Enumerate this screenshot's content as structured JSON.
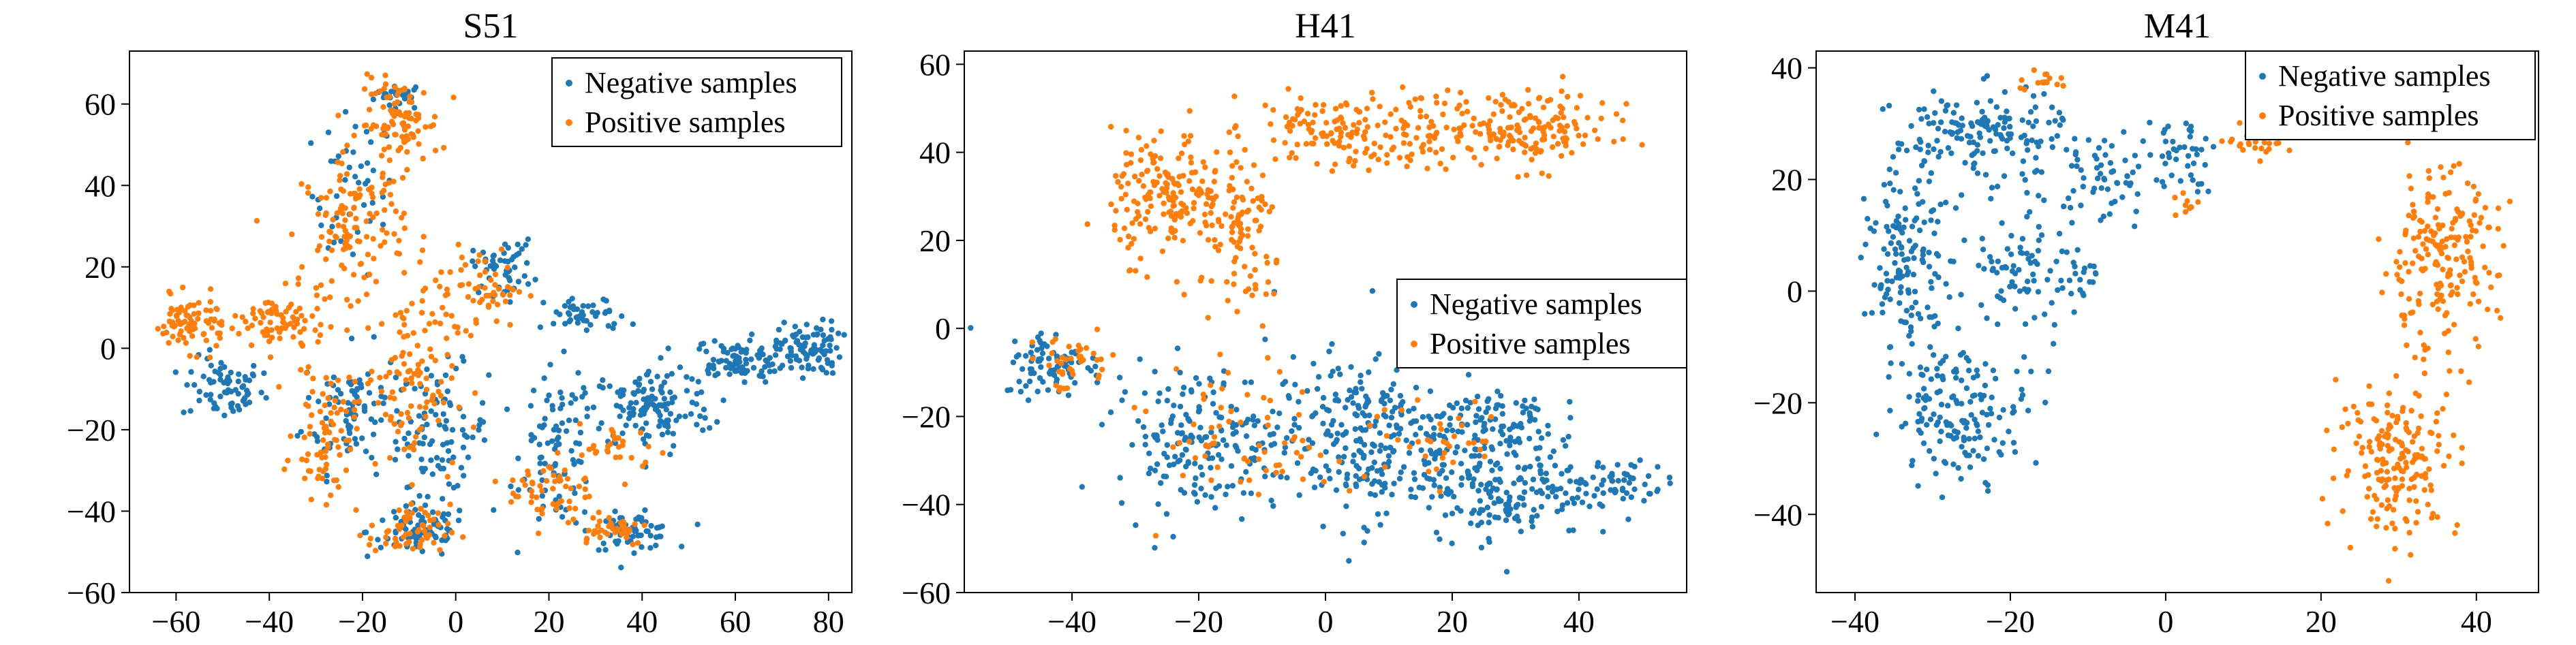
{
  "colors": {
    "negative": "#1f77b4",
    "positive": "#ff7f0e",
    "axes": "#000000",
    "background": "#ffffff"
  },
  "chart_data": [
    {
      "type": "scatter",
      "title": "S51",
      "xlim": [
        -70,
        85
      ],
      "ylim": [
        -60,
        73
      ],
      "xticks": [
        -60,
        -40,
        -20,
        0,
        20,
        40,
        60,
        80
      ],
      "yticks": [
        -60,
        -40,
        -20,
        0,
        20,
        40,
        60
      ],
      "xtick_labels": [
        "−60",
        "−40",
        "−20",
        "0",
        "20",
        "40",
        "60",
        "80"
      ],
      "ytick_labels": [
        "−60",
        "−40",
        "−20",
        "0",
        "20",
        "40",
        "60"
      ],
      "legend": {
        "position": "top-right",
        "entries": [
          "Negative samples",
          "Positive samples"
        ]
      },
      "series": [
        {
          "name": "Negative samples",
          "color": "#1f77b4",
          "clusters": [
            {
              "cx": -12,
              "cy": 62,
              "rx": 5,
              "ry": 3,
              "n": 25
            },
            {
              "cx": -22,
              "cy": 38,
              "rx": 8,
              "ry": 18,
              "n": 45
            },
            {
              "cx": -50,
              "cy": -10,
              "rx": 8,
              "ry": 7,
              "n": 70
            },
            {
              "cx": -22,
              "cy": -15,
              "rx": 10,
              "ry": 14,
              "n": 90
            },
            {
              "cx": -3,
              "cy": -20,
              "rx": 9,
              "ry": 14,
              "n": 90
            },
            {
              "cx": -8,
              "cy": -45,
              "rx": 10,
              "ry": 6,
              "n": 80
            },
            {
              "cx": 22,
              "cy": -25,
              "rx": 7,
              "ry": 18,
              "n": 90
            },
            {
              "cx": 38,
              "cy": -45,
              "rx": 8,
              "ry": 4,
              "n": 60
            },
            {
              "cx": 42,
              "cy": -15,
              "rx": 12,
              "ry": 9,
              "n": 130
            },
            {
              "cx": 60,
              "cy": -3,
              "rx": 10,
              "ry": 5,
              "n": 100
            },
            {
              "cx": 76,
              "cy": 0,
              "rx": 6,
              "ry": 6,
              "n": 90
            },
            {
              "cx": 28,
              "cy": 8,
              "rx": 8,
              "ry": 4,
              "n": 50
            },
            {
              "cx": 10,
              "cy": 20,
              "rx": 6,
              "ry": 6,
              "n": 50
            }
          ]
        },
        {
          "name": "Positive samples",
          "color": "#ff7f0e",
          "clusters": [
            {
              "cx": -12,
              "cy": 55,
              "rx": 8,
              "ry": 10,
              "n": 100
            },
            {
              "cx": -22,
              "cy": 30,
              "rx": 10,
              "ry": 15,
              "n": 120
            },
            {
              "cx": -57,
              "cy": 6,
              "rx": 7,
              "ry": 6,
              "n": 80
            },
            {
              "cx": -38,
              "cy": 6,
              "rx": 9,
              "ry": 7,
              "n": 80
            },
            {
              "cx": -28,
              "cy": -20,
              "rx": 6,
              "ry": 15,
              "n": 80
            },
            {
              "cx": -10,
              "cy": -8,
              "rx": 9,
              "ry": 20,
              "n": 110
            },
            {
              "cx": -10,
              "cy": -45,
              "rx": 8,
              "ry": 6,
              "n": 60
            },
            {
              "cx": 5,
              "cy": 15,
              "rx": 9,
              "ry": 9,
              "n": 60
            },
            {
              "cx": 20,
              "cy": -35,
              "rx": 8,
              "ry": 8,
              "n": 50
            },
            {
              "cx": 33,
              "cy": -44,
              "rx": 8,
              "ry": 4,
              "n": 40
            },
            {
              "cx": 35,
              "cy": -25,
              "rx": 8,
              "ry": 6,
              "n": 30
            }
          ]
        }
      ]
    },
    {
      "type": "scatter",
      "title": "H41",
      "xlim": [
        -57,
        57
      ],
      "ylim": [
        -60,
        63
      ],
      "xticks": [
        -40,
        -20,
        0,
        20,
        40
      ],
      "yticks": [
        -60,
        -40,
        -20,
        0,
        20,
        40,
        60
      ],
      "xtick_labels": [
        "−40",
        "−20",
        "0",
        "20",
        "40"
      ],
      "ytick_labels": [
        "−60",
        "−40",
        "−20",
        "0",
        "20",
        "40",
        "60"
      ],
      "legend": {
        "position": "center-right",
        "entries": [
          "Negative samples",
          "Positive samples"
        ]
      },
      "series": [
        {
          "name": "Negative samples",
          "color": "#1f77b4",
          "clusters": [
            {
              "cx": -43,
              "cy": -8,
              "rx": 7,
              "ry": 7,
              "n": 80
            },
            {
              "cx": -20,
              "cy": -25,
              "rx": 12,
              "ry": 15,
              "n": 180
            },
            {
              "cx": 5,
              "cy": -25,
              "rx": 12,
              "ry": 17,
              "n": 250
            },
            {
              "cx": 28,
              "cy": -35,
              "rx": 12,
              "ry": 12,
              "n": 200
            },
            {
              "cx": 45,
              "cy": -35,
              "rx": 8,
              "ry": 5,
              "n": 60
            },
            {
              "cx": 25,
              "cy": -20,
              "rx": 10,
              "ry": 7,
              "n": 80
            }
          ]
        },
        {
          "name": "Positive samples",
          "color": "#ff7f0e",
          "clusters": [
            {
              "cx": -25,
              "cy": 30,
              "rx": 8,
              "ry": 13,
              "n": 170
            },
            {
              "cx": -13,
              "cy": 20,
              "rx": 6,
              "ry": 18,
              "n": 100
            },
            {
              "cx": 0,
              "cy": 45,
              "rx": 10,
              "ry": 8,
              "n": 100
            },
            {
              "cx": 15,
              "cy": 45,
              "rx": 10,
              "ry": 7,
              "n": 80
            },
            {
              "cx": 32,
              "cy": 45,
              "rx": 12,
              "ry": 8,
              "n": 150
            },
            {
              "cx": -40,
              "cy": -8,
              "rx": 7,
              "ry": 6,
              "n": 40
            },
            {
              "cx": -12,
              "cy": -25,
              "rx": 12,
              "ry": 15,
              "n": 60
            },
            {
              "cx": 15,
              "cy": -25,
              "rx": 15,
              "ry": 12,
              "n": 40
            }
          ]
        }
      ]
    },
    {
      "type": "scatter",
      "title": "M41",
      "xlim": [
        -45,
        48
      ],
      "ylim": [
        -54,
        43
      ],
      "xticks": [
        -40,
        -20,
        0,
        20,
        40
      ],
      "yticks": [
        -40,
        -20,
        0,
        20,
        40
      ],
      "xtick_labels": [
        "−40",
        "−20",
        "0",
        "20",
        "40"
      ],
      "ytick_labels": [
        "−40",
        "−20",
        "0",
        "20",
        "40"
      ],
      "legend": {
        "position": "top-right",
        "entries": [
          "Negative samples",
          "Positive samples"
        ]
      },
      "series": [
        {
          "name": "Negative samples",
          "color": "#1f77b4",
          "clusters": [
            {
              "cx": -24,
              "cy": 28,
              "rx": 10,
              "ry": 7,
              "n": 150
            },
            {
              "cx": -33,
              "cy": 5,
              "rx": 5,
              "ry": 15,
              "n": 150
            },
            {
              "cx": -26,
              "cy": -22,
              "rx": 8,
              "ry": 10,
              "n": 150
            },
            {
              "cx": -18,
              "cy": 5,
              "rx": 6,
              "ry": 12,
              "n": 80
            },
            {
              "cx": -8,
              "cy": 20,
              "rx": 6,
              "ry": 8,
              "n": 60
            },
            {
              "cx": 2,
              "cy": 25,
              "rx": 4,
              "ry": 6,
              "n": 40
            },
            {
              "cx": -11,
              "cy": 3,
              "rx": 2,
              "ry": 4,
              "n": 15
            }
          ]
        },
        {
          "name": "Positive samples",
          "color": "#ff7f0e",
          "clusters": [
            {
              "cx": 35,
              "cy": 5,
              "rx": 7,
              "ry": 15,
              "n": 200
            },
            {
              "cx": 30,
              "cy": -30,
              "rx": 7,
              "ry": 12,
              "n": 180
            },
            {
              "cx": 12,
              "cy": 27,
              "rx": 4,
              "ry": 2,
              "n": 30
            },
            {
              "cx": 3,
              "cy": 15,
              "rx": 2,
              "ry": 3,
              "n": 10
            },
            {
              "cx": -16,
              "cy": 38,
              "rx": 3,
              "ry": 2,
              "n": 15
            }
          ]
        }
      ]
    }
  ]
}
